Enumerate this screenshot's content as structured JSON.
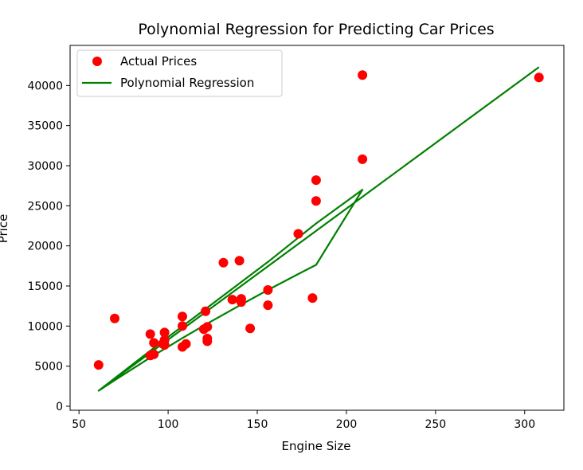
{
  "chart_data": {
    "type": "scatter",
    "title": "Polynomial Regression for Predicting Car Prices",
    "xlabel": "Engine Size",
    "ylabel": "Price",
    "xlim": [
      45,
      322
    ],
    "ylim": [
      -500,
      45000
    ],
    "xticks": [
      50,
      100,
      150,
      200,
      250,
      300
    ],
    "yticks": [
      0,
      5000,
      10000,
      15000,
      20000,
      25000,
      30000,
      35000,
      40000
    ],
    "grid": false,
    "legend_position": "top-left",
    "series": [
      {
        "name": "Actual Prices",
        "kind": "scatter",
        "color": "#ff0000",
        "points": [
          [
            61,
            5151
          ],
          [
            70,
            10945
          ],
          [
            90,
            6338
          ],
          [
            90,
            9000
          ],
          [
            92,
            6488
          ],
          [
            92,
            7900
          ],
          [
            97,
            7800
          ],
          [
            98,
            8250
          ],
          [
            98,
            9200
          ],
          [
            98,
            7650
          ],
          [
            108,
            7400
          ],
          [
            108,
            10000
          ],
          [
            108,
            11200
          ],
          [
            110,
            7775
          ],
          [
            120,
            9600
          ],
          [
            121,
            11850
          ],
          [
            122,
            9900
          ],
          [
            122,
            8450
          ],
          [
            122,
            8100
          ],
          [
            131,
            17900
          ],
          [
            136,
            13300
          ],
          [
            140,
            18150
          ],
          [
            141,
            13400
          ],
          [
            141,
            13000
          ],
          [
            146,
            9700
          ],
          [
            156,
            14500
          ],
          [
            156,
            12600
          ],
          [
            173,
            21500
          ],
          [
            181,
            13500
          ],
          [
            183,
            28200
          ],
          [
            183,
            25600
          ],
          [
            209,
            30800
          ],
          [
            209,
            41300
          ],
          [
            308,
            41000
          ]
        ]
      },
      {
        "name": "Polynomial Regression",
        "kind": "line",
        "color": "#008000",
        "points": [
          [
            61,
            1930
          ],
          [
            70,
            3244
          ],
          [
            90,
            6072
          ],
          [
            92,
            6348
          ],
          [
            98,
            7163
          ],
          [
            108,
            8500
          ],
          [
            122,
            10313
          ],
          [
            141,
            12688
          ],
          [
            156,
            14502
          ],
          [
            173,
            16489
          ],
          [
            183,
            17626
          ],
          [
            209,
            27000
          ],
          [
            183,
            22800
          ],
          [
            156,
            18000
          ],
          [
            122,
            12300
          ],
          [
            98,
            8300
          ],
          [
            61,
            1930
          ],
          [
            308,
            42300
          ]
        ]
      }
    ]
  }
}
